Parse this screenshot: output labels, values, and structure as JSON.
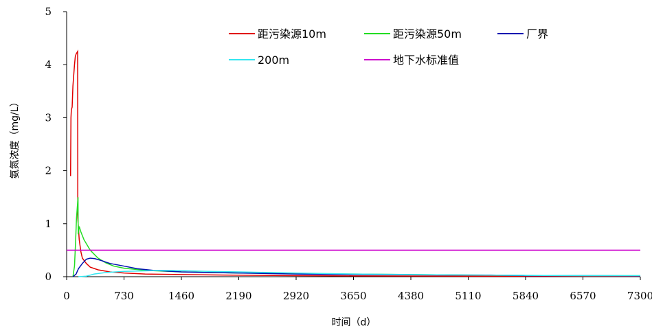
{
  "chart_data": {
    "type": "line",
    "title": "",
    "xlabel": "时间（d）",
    "ylabel": "氨氮浓度（mg/L）",
    "xlim": [
      0,
      7300
    ],
    "ylim": [
      0,
      5
    ],
    "xticks": [
      0,
      730,
      1460,
      2190,
      2920,
      3650,
      4380,
      5110,
      5840,
      6570,
      7300
    ],
    "yticks": [
      0,
      1,
      2,
      3,
      4,
      5
    ],
    "grid": false,
    "legend_position": "top-right",
    "series": [
      {
        "name": "距污染源10m",
        "color": "#e00000",
        "points": [
          [
            50,
            1.9
          ],
          [
            55,
            3.0
          ],
          [
            60,
            3.15
          ],
          [
            70,
            3.2
          ],
          [
            80,
            3.6
          ],
          [
            90,
            3.8
          ],
          [
            100,
            4.0
          ],
          [
            110,
            4.15
          ],
          [
            120,
            4.2
          ],
          [
            140,
            4.25
          ],
          [
            142,
            1.1
          ],
          [
            160,
            0.7
          ],
          [
            180,
            0.48
          ],
          [
            200,
            0.35
          ],
          [
            250,
            0.25
          ],
          [
            300,
            0.18
          ],
          [
            400,
            0.13
          ],
          [
            550,
            0.09
          ],
          [
            730,
            0.07
          ],
          [
            1000,
            0.05
          ],
          [
            1460,
            0.04
          ],
          [
            2000,
            0.03
          ],
          [
            2920,
            0.02
          ],
          [
            3650,
            0.015
          ],
          [
            5110,
            0.01
          ],
          [
            7300,
            0.01
          ]
        ]
      },
      {
        "name": "距污染源50m",
        "color": "#22dd22",
        "points": [
          [
            80,
            0.0
          ],
          [
            100,
            0.2
          ],
          [
            115,
            0.7
          ],
          [
            125,
            1.1
          ],
          [
            135,
            1.3
          ],
          [
            145,
            1.5
          ],
          [
            147,
            0.8
          ],
          [
            160,
            0.95
          ],
          [
            180,
            0.85
          ],
          [
            220,
            0.7
          ],
          [
            300,
            0.5
          ],
          [
            400,
            0.35
          ],
          [
            500,
            0.26
          ],
          [
            600,
            0.2
          ],
          [
            730,
            0.16
          ],
          [
            1000,
            0.12
          ],
          [
            1460,
            0.09
          ],
          [
            2190,
            0.07
          ],
          [
            2920,
            0.06
          ],
          [
            3650,
            0.05
          ],
          [
            4380,
            0.04
          ],
          [
            5110,
            0.03
          ],
          [
            5840,
            0.025
          ],
          [
            6570,
            0.02
          ],
          [
            7300,
            0.02
          ]
        ]
      },
      {
        "name": "厂界",
        "color": "#0010b0",
        "points": [
          [
            80,
            0.0
          ],
          [
            120,
            0.05
          ],
          [
            150,
            0.15
          ],
          [
            200,
            0.25
          ],
          [
            250,
            0.33
          ],
          [
            300,
            0.35
          ],
          [
            360,
            0.34
          ],
          [
            450,
            0.3
          ],
          [
            550,
            0.25
          ],
          [
            730,
            0.2
          ],
          [
            900,
            0.15
          ],
          [
            1100,
            0.12
          ],
          [
            1460,
            0.09
          ],
          [
            1800,
            0.08
          ],
          [
            2190,
            0.07
          ],
          [
            2920,
            0.05
          ],
          [
            3650,
            0.04
          ],
          [
            4380,
            0.035
          ],
          [
            5110,
            0.03
          ],
          [
            5400,
            0.03
          ],
          [
            5840,
            0.02
          ],
          [
            6570,
            0.02
          ],
          [
            7300,
            0.015
          ]
        ]
      },
      {
        "name": "200m",
        "color": "#33e6f0",
        "points": [
          [
            150,
            0.0
          ],
          [
            250,
            0.01
          ],
          [
            350,
            0.05
          ],
          [
            500,
            0.08
          ],
          [
            730,
            0.1
          ],
          [
            1000,
            0.11
          ],
          [
            1200,
            0.12
          ],
          [
            1460,
            0.115
          ],
          [
            1800,
            0.1
          ],
          [
            2190,
            0.09
          ],
          [
            2920,
            0.07
          ],
          [
            3650,
            0.05
          ],
          [
            4380,
            0.04
          ],
          [
            5110,
            0.03
          ],
          [
            5840,
            0.025
          ],
          [
            6570,
            0.02
          ],
          [
            7300,
            0.02
          ]
        ]
      },
      {
        "name": "地下水标准值",
        "color": "#cc00cc",
        "points": [
          [
            0,
            0.5
          ],
          [
            7300,
            0.5
          ]
        ]
      }
    ]
  }
}
